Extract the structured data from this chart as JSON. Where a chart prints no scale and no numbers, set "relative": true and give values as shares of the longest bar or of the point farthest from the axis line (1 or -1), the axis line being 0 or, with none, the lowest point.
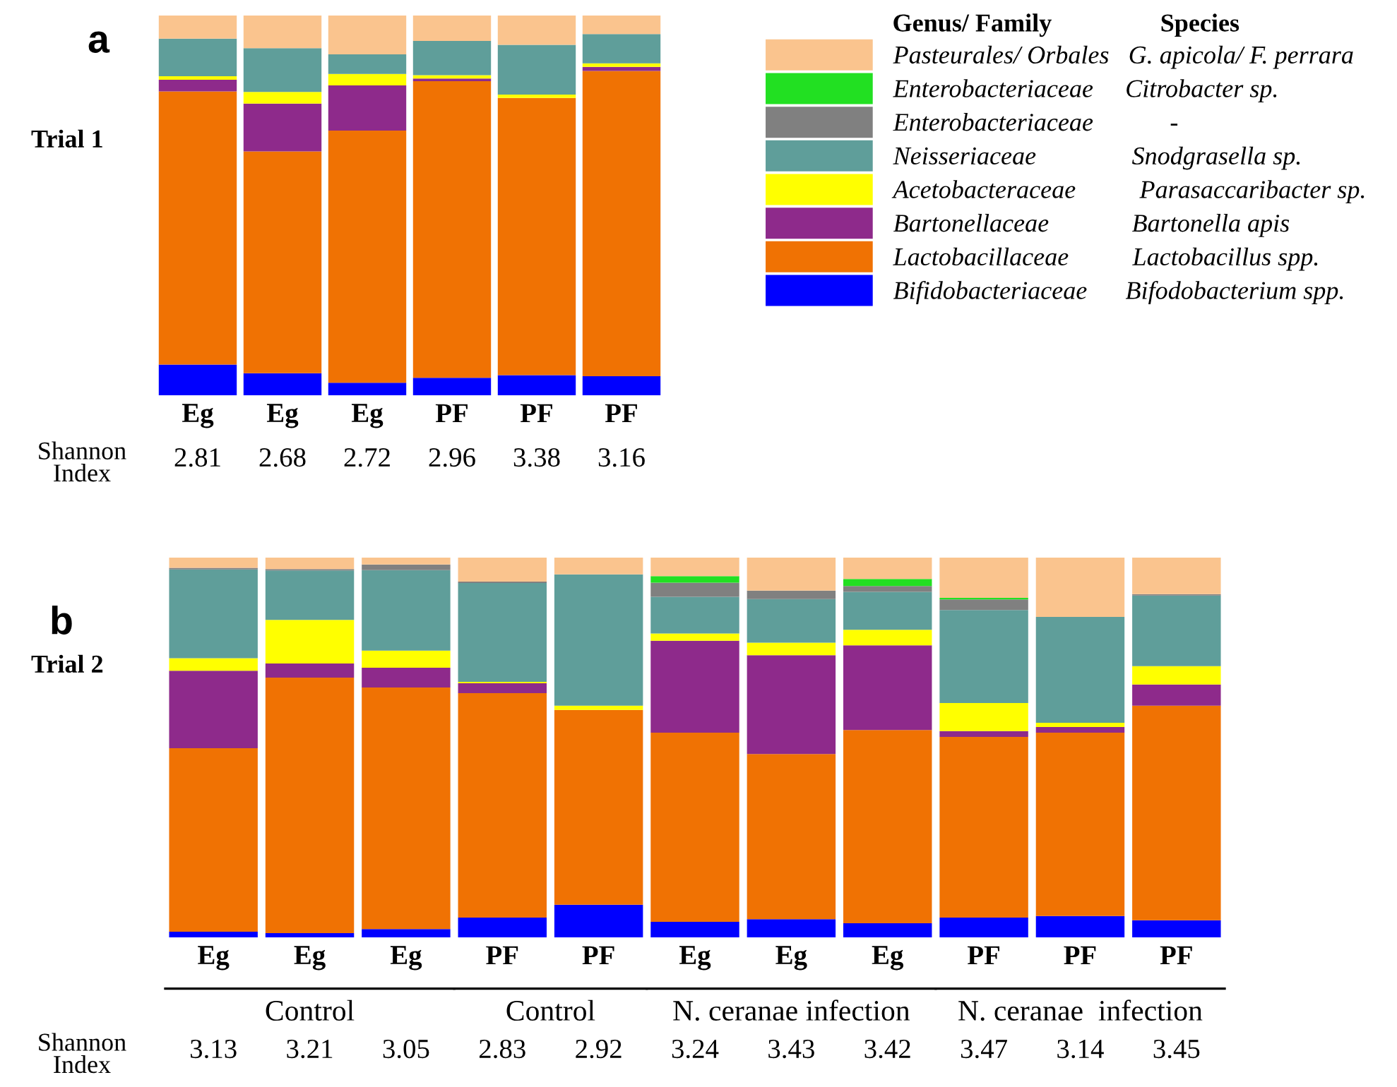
{
  "chart_data": [
    {
      "type": "bar",
      "stacked": true,
      "relative": true,
      "title": "a",
      "subtitle": "Trial 1",
      "legend": "right",
      "legend_title": "Genus/ Family                 Species",
      "categories": [
        "Eg",
        "Eg",
        "Eg",
        "PF",
        "PF",
        "PF"
      ],
      "annotations": [
        "Shannon\nIndex",
        "2.81",
        "2.68",
        "2.72",
        "2.96",
        "3.38",
        "3.16"
      ],
      "series": [
        {
          "name": "Bifidobacteriaceae      Bifodobacterium spp.",
          "color": "#0000ff",
          "values": [
            0.081,
            0.058,
            0.033,
            0.046,
            0.053,
            0.05
          ]
        },
        {
          "name": "Lactobacillaceae          Lactobacillus spp.",
          "color": "#f07203",
          "values": [
            0.719,
            0.584,
            0.664,
            0.781,
            0.73,
            0.804
          ]
        },
        {
          "name": "Bartonellaceae             Bartonella apis",
          "color": "#8e2a8b",
          "values": [
            0.031,
            0.126,
            0.119,
            0.007,
            0,
            0.011
          ]
        },
        {
          "name": "Acetobacteraceae          Parasaccaribacter sp.",
          "color": "#ffff00",
          "values": [
            0.009,
            0.031,
            0.03,
            0.009,
            0.009,
            0.009
          ]
        },
        {
          "name": "Neisseriaceae               Snodgrasella sp.",
          "color": "#5f9e9a",
          "values": [
            0.099,
            0.115,
            0.052,
            0.09,
            0.131,
            0.077
          ]
        },
        {
          "name": "Enterobacteriaceae            -",
          "color": "#808080",
          "values": [
            0,
            0,
            0,
            0,
            0,
            0
          ]
        },
        {
          "name": "Enterobacteriaceae     Citrobacter sp.",
          "color": "#22e022",
          "values": [
            0,
            0,
            0,
            0,
            0,
            0
          ]
        },
        {
          "name": "Pasteurales/ Orbales   G. apicola/ F. perrara",
          "color": "#fac48e",
          "values": [
            0.061,
            0.086,
            0.102,
            0.067,
            0.077,
            0.049
          ]
        }
      ]
    },
    {
      "type": "bar",
      "stacked": true,
      "relative": true,
      "title": "b",
      "subtitle": "Trial 2",
      "categories": [
        "Eg",
        "Eg",
        "Eg",
        "PF",
        "PF",
        "Eg",
        "Eg",
        "Eg",
        "PF",
        "PF",
        "PF"
      ],
      "annotations": [
        "Shannon\nIndex",
        "3.13",
        "3.21",
        "3.05",
        "2.83",
        "2.92",
        "3.24",
        "3.43",
        "3.42",
        "3.47",
        "3.14",
        "3.45",
        "Control",
        "Control",
        "N. ceranae infection",
        "N. ceranae  infection"
      ],
      "series": [
        {
          "color": "#0000ff",
          "values": [
            0.015,
            0.011,
            0.022,
            0.052,
            0.086,
            0.041,
            0.048,
            0.037,
            0.052,
            0.056,
            0.045
          ]
        },
        {
          "color": "#f07203",
          "values": [
            0.483,
            0.673,
            0.636,
            0.591,
            0.513,
            0.498,
            0.435,
            0.509,
            0.476,
            0.483,
            0.565
          ]
        },
        {
          "color": "#8e2a8b",
          "values": [
            0.204,
            0.037,
            0.052,
            0.026,
            0,
            0.242,
            0.26,
            0.223,
            0.015,
            0.015,
            0.056
          ]
        },
        {
          "color": "#ffff00",
          "values": [
            0.033,
            0.115,
            0.045,
            0.004,
            0.011,
            0.019,
            0.033,
            0.041,
            0.074,
            0.011,
            0.048
          ]
        },
        {
          "color": "#5f9e9a",
          "values": [
            0.234,
            0.13,
            0.212,
            0.26,
            0.346,
            0.097,
            0.115,
            0.1,
            0.245,
            0.279,
            0.186
          ]
        },
        {
          "color": "#808080",
          "values": [
            0.004,
            0.004,
            0.015,
            0.004,
            0,
            0.037,
            0.022,
            0.015,
            0.028,
            0,
            0.004
          ]
        },
        {
          "color": "#22e022",
          "values": [
            0,
            0,
            0,
            0,
            0,
            0.017,
            0,
            0.019,
            0.004,
            0,
            0
          ]
        },
        {
          "color": "#fac48e",
          "values": [
            0.027,
            0.03,
            0.018,
            0.063,
            0.044,
            0.049,
            0.087,
            0.056,
            0.106,
            0.156,
            0.096
          ]
        }
      ]
    }
  ]
}
